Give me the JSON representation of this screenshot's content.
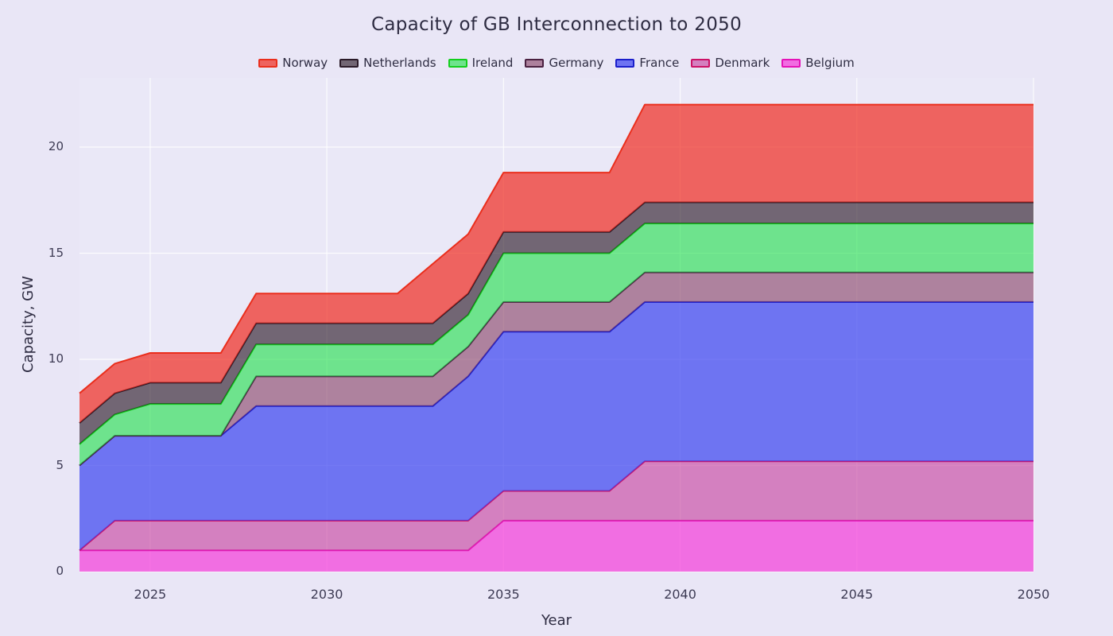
{
  "theme": {
    "page_bg": "#e9e6f6",
    "plot_bg": "#eae8f7",
    "grid_color": "#ffffff",
    "text_color": "#2e2c42",
    "tick_color": "#3d3b54"
  },
  "chart_data": {
    "type": "area",
    "stacked": true,
    "title": "Capacity of GB Interconnection to 2050",
    "xlabel": "Year",
    "ylabel": "Capacity, GW",
    "grid": true,
    "legend_position": "top",
    "xlim": [
      2023,
      2050
    ],
    "ylim": [
      0,
      23.26
    ],
    "x_ticks": [
      2025,
      2030,
      2035,
      2040,
      2045,
      2050
    ],
    "y_ticks": [
      0,
      5,
      10,
      15,
      20
    ],
    "x": [
      2023,
      2024,
      2025,
      2026,
      2027,
      2028,
      2029,
      2030,
      2031,
      2032,
      2033,
      2034,
      2035,
      2036,
      2037,
      2038,
      2039,
      2040,
      2041,
      2042,
      2043,
      2044,
      2045,
      2046,
      2047,
      2048,
      2049,
      2050
    ],
    "legend_order": [
      "Norway",
      "Netherlands",
      "Ireland",
      "Germany",
      "France",
      "Denmark",
      "Belgium"
    ],
    "series": [
      {
        "name": "Belgium",
        "line_color": "#e512b8",
        "fill_color": "rgba(244,62,218,0.72)",
        "values": [
          1,
          1,
          1,
          1,
          1,
          1,
          1,
          1,
          1,
          1,
          1,
          1,
          2.4,
          2.4,
          2.4,
          2.4,
          2.4,
          2.4,
          2.4,
          2.4,
          2.4,
          2.4,
          2.4,
          2.4,
          2.4,
          2.4,
          2.4,
          2.4
        ]
      },
      {
        "name": "Denmark",
        "line_color": "#cc1166",
        "fill_color": "rgba(199,64,158,0.62)",
        "values": [
          0,
          1.4,
          1.4,
          1.4,
          1.4,
          1.4,
          1.4,
          1.4,
          1.4,
          1.4,
          1.4,
          1.4,
          1.4,
          1.4,
          1.4,
          1.4,
          2.8,
          2.8,
          2.8,
          2.8,
          2.8,
          2.8,
          2.8,
          2.8,
          2.8,
          2.8,
          2.8,
          2.8
        ]
      },
      {
        "name": "France",
        "line_color": "#1a1ecb",
        "fill_color": "rgba(62,70,240,0.72)",
        "values": [
          4,
          4,
          4,
          4,
          4,
          5.4,
          5.4,
          5.4,
          5.4,
          5.4,
          5.4,
          6.8,
          7.5,
          7.5,
          7.5,
          7.5,
          7.5,
          7.5,
          7.5,
          7.5,
          7.5,
          7.5,
          7.5,
          7.5,
          7.5,
          7.5,
          7.5,
          7.5
        ]
      },
      {
        "name": "Germany",
        "line_color": "#4a2040",
        "fill_color": "rgba(134,62,99,0.60)",
        "values": [
          0,
          0,
          0,
          0,
          0,
          1.4,
          1.4,
          1.4,
          1.4,
          1.4,
          1.4,
          1.4,
          1.4,
          1.4,
          1.4,
          1.4,
          1.4,
          1.4,
          1.4,
          1.4,
          1.4,
          1.4,
          1.4,
          1.4,
          1.4,
          1.4,
          1.4,
          1.4
        ]
      },
      {
        "name": "Ireland",
        "line_color": "#12cf1c",
        "fill_color": "rgba(34,224,76,0.62)",
        "values": [
          1,
          1,
          1.5,
          1.5,
          1.5,
          1.5,
          1.5,
          1.5,
          1.5,
          1.5,
          1.5,
          1.5,
          2.3,
          2.3,
          2.3,
          2.3,
          2.3,
          2.3,
          2.3,
          2.3,
          2.3,
          2.3,
          2.3,
          2.3,
          2.3,
          2.3,
          2.3,
          2.3
        ]
      },
      {
        "name": "Netherlands",
        "line_color": "#2a1a28",
        "fill_color": "rgba(40,22,36,0.62)",
        "values": [
          1,
          1,
          1,
          1,
          1,
          1,
          1,
          1,
          1,
          1,
          1,
          1,
          1,
          1,
          1,
          1,
          1,
          1,
          1,
          1,
          1,
          1,
          1,
          1,
          1,
          1,
          1,
          1
        ]
      },
      {
        "name": "Norway",
        "line_color": "#ea2e1c",
        "fill_color": "rgba(240,43,31,0.70)",
        "values": [
          1.4,
          1.4,
          1.4,
          1.4,
          1.4,
          1.4,
          1.4,
          1.4,
          1.4,
          1.4,
          2.8,
          2.8,
          2.8,
          2.8,
          2.8,
          2.8,
          4.6,
          4.6,
          4.6,
          4.6,
          4.6,
          4.6,
          4.6,
          4.6,
          4.6,
          4.6,
          4.6,
          4.6
        ]
      }
    ]
  }
}
